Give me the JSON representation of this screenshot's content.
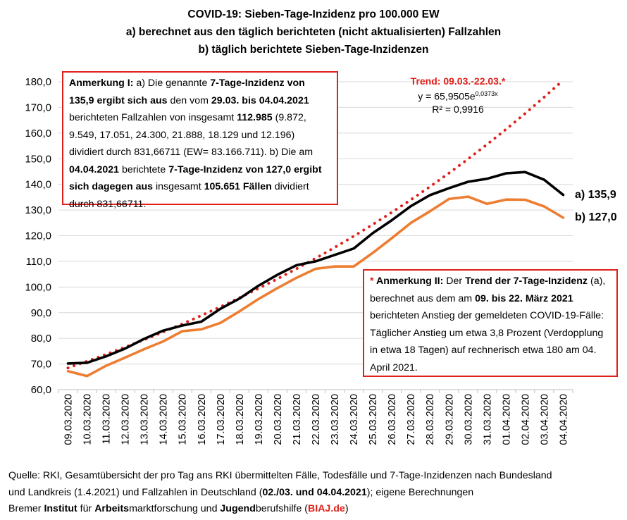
{
  "title": {
    "line1": "COVID-19: Sieben-Tage-Inzidenz pro 100.000 EW",
    "line2": "a) berechnet aus den täglich berichteten (nicht aktualisierten) Fallzahlen",
    "line3": "b) täglich berichtete Sieben-Tage-Inzidenzen"
  },
  "annotation1": {
    "prefix": "Anmerkung I:",
    "t1": "  a) Die genannte ",
    "b1": "7-Tage-Inzidenz von 135,9 ergibt sich aus",
    "t2": " den vom ",
    "b2": "29.03. bis 04.04.2021",
    "t3": " berichteten Fallzahlen von insgesamt ",
    "b3": "112.985",
    "t4": " (9.872, 9.549, 17.051, 24.300, 21.888, 18.129 und 12.196) dividiert durch 831,66711 (EW= 83.166.711). b) Die am ",
    "b4": "04.04.2021",
    "t5": " berichtete ",
    "b5": "7-Tage-Inzidenz von 127,0 ergibt sich dagegen aus",
    "t6": " insgesamt ",
    "b6": "105.651 Fällen",
    "t7": " dividiert durch 831,66711."
  },
  "annotation2": {
    "star": "*",
    "prefix": " Anmerkung II:",
    "t1": " Der ",
    "b1": "Trend der 7-Tage-Inzidenz",
    "t2": " (a), berechnet aus dem am ",
    "b2": "09. bis 22. März 2021",
    "t3": " berichteten Anstieg der gemeldeten COVID-19-Fälle: Täglicher Anstieg um etwa 3,8 Prozent (Verdopplung in etwa 18 Tagen) auf rechnerisch etwa 180 am 04. April 2021."
  },
  "trend_label": {
    "title": "Trend: 09.03.-22.03.*",
    "eq_base": "y = 65,9505e",
    "eq_exp": "0,0373x",
    "r2": "R² = 0,9916"
  },
  "end_labels": {
    "a": "a) 135,9",
    "b": "b) 127,0"
  },
  "source": {
    "line1": "Quelle: RKI, Gesamtübersicht der pro Tag ans RKI übermittelten Fälle, Todesfälle und 7-Tage-Inzidenzen nach Bundesland",
    "line2_pre": "und Landkreis (1.4.2021) und Fallzahlen in Deutschland (",
    "line2_bold": "02./03. und 04.04.2021",
    "line2_post": "); eigene Berechnungen",
    "l3_a": "Bremer ",
    "l3_b": "Institut",
    "l3_c": " für ",
    "l3_d": "Arbeits",
    "l3_e": "marktforschung und ",
    "l3_f": "Jugend",
    "l3_g": "berufshilfe (",
    "l3_h": "BIAJ.de",
    "l3_i": ")"
  },
  "colors": {
    "series_a": "#000000",
    "series_b": "#ed7d31",
    "trend": "#e0201b",
    "grid": "#d9d9d9",
    "annotation_border": "#e0201b"
  },
  "chart_data": {
    "type": "line",
    "categories": [
      "09.03.2020",
      "10.03.2020",
      "11.03.2020",
      "12.03.2020",
      "13.03.2020",
      "14.03.2020",
      "15.03.2020",
      "16.03.2020",
      "17.03.2020",
      "18.03.2020",
      "19.03.2020",
      "20.03.2020",
      "21.03.2020",
      "22.03.2020",
      "23.03.2020",
      "24.03.2020",
      "25.03.2020",
      "26.03.2020",
      "27.03.2020",
      "28.03.2020",
      "29.03.2020",
      "30.03.2020",
      "31.03.2020",
      "01.04.2020",
      "02.04.2020",
      "03.04.2020",
      "04.04.2020"
    ],
    "series": [
      {
        "values": [
          70.2,
          70.5,
          73.0,
          76.0,
          79.8,
          83.0,
          85.0,
          86.5,
          91.5,
          95.5,
          100.5,
          104.8,
          108.5,
          110.0,
          112.5,
          115.0,
          121.0,
          126.0,
          131.5,
          135.8,
          138.5,
          141.0,
          142.2,
          144.3,
          144.8,
          141.8,
          135.9
        ]
      },
      {
        "values": [
          67.2,
          65.3,
          69.3,
          72.5,
          75.8,
          78.8,
          82.8,
          83.5,
          86.0,
          90.5,
          95.3,
          99.6,
          103.6,
          107.1,
          108.0,
          108.0,
          113.3,
          119.0,
          125.0,
          129.5,
          134.3,
          135.2,
          132.4,
          134.1,
          134.0,
          131.4,
          127.0
        ]
      },
      {
        "values": [
          68.46,
          71.06,
          73.76,
          76.57,
          79.48,
          82.5,
          85.63,
          88.89,
          92.27,
          95.78,
          99.42,
          103.2,
          107.12,
          111.19,
          115.42,
          119.81,
          124.36,
          129.09,
          134.0,
          139.09,
          144.38,
          149.87,
          155.57,
          161.48,
          167.62,
          174.0,
          180.61
        ]
      }
    ],
    "ylim": [
      60,
      180
    ],
    "yticks": [
      "60,0",
      "70,0",
      "80,0",
      "90,0",
      "100,0",
      "110,0",
      "120,0",
      "130,0",
      "140,0",
      "150,0",
      "160,0",
      "170,0",
      "180,0"
    ],
    "grid": "horizontal",
    "legend": "none"
  }
}
